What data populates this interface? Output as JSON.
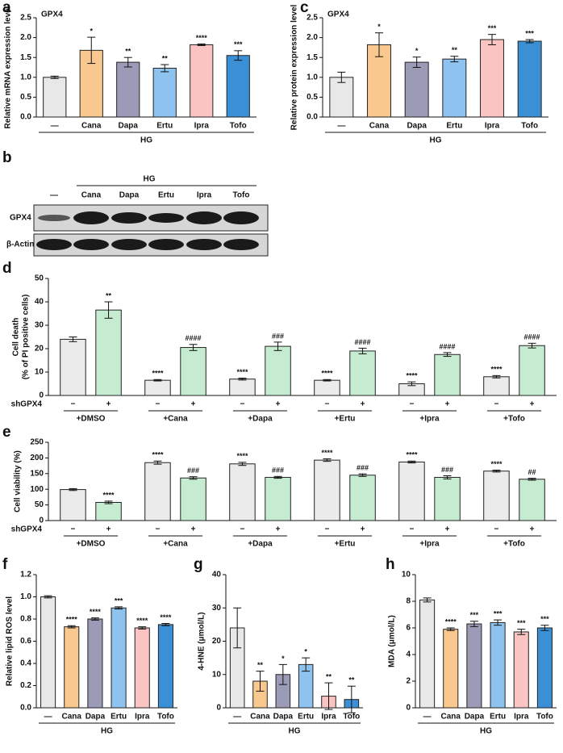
{
  "chart_data": [
    {
      "type": "bar",
      "panel_label": "a",
      "annotation": "GPX4",
      "ylabel": "Relative mRNA expression level",
      "categories": [
        "—",
        "Cana",
        "Dapa",
        "Ertu",
        "Ipra",
        "Tofo"
      ],
      "group_label": "HG",
      "values": [
        1.0,
        1.68,
        1.38,
        1.23,
        1.82,
        1.55
      ],
      "errors": [
        0.03,
        0.33,
        0.12,
        0.09,
        0.02,
        0.12
      ],
      "annotations": [
        null,
        "*",
        "**",
        "**",
        "****",
        "***"
      ],
      "colors": [
        "#e8e8e8",
        "#f8c88f",
        "#9b9bb8",
        "#8fc3ef",
        "#f9c4c2",
        "#3a8fd5"
      ],
      "ylim": [
        0,
        2.5
      ],
      "yticks": [
        {
          "value": 0,
          "label": "0.0"
        },
        0.5,
        {
          "value": 1,
          "label": "1.0"
        },
        1.5,
        {
          "value": 2,
          "label": "2.0"
        },
        2.5
      ]
    },
    {
      "type": "bar",
      "panel_label": "c",
      "annotation": "GPX4",
      "ylabel": "Relative protein expression level",
      "categories": [
        "—",
        "Cana",
        "Dapa",
        "Ertu",
        "Ipra",
        "Tofo"
      ],
      "group_label": "HG",
      "values": [
        1.0,
        1.82,
        1.38,
        1.46,
        1.95,
        1.91
      ],
      "errors": [
        0.13,
        0.3,
        0.13,
        0.07,
        0.13,
        0.04
      ],
      "annotations": [
        null,
        "*",
        "*",
        "**",
        "***",
        "***"
      ],
      "colors": [
        "#e8e8e8",
        "#f8c88f",
        "#9b9bb8",
        "#8fc3ef",
        "#f9c4c2",
        "#3a8fd5"
      ],
      "ylim": [
        0,
        2.5
      ],
      "yticks": [
        {
          "value": 0,
          "label": "0.0"
        },
        0.5,
        {
          "value": 1,
          "label": "1.0"
        },
        1.5,
        {
          "value": 2,
          "label": "2.0"
        },
        2.5
      ]
    },
    {
      "type": "bar",
      "panel_label": "d",
      "ylabel": [
        "Cell death",
        "(% of PI positive cells)"
      ],
      "legend_title": "shGPX4",
      "categories": [
        "+DMSO",
        "+Cana",
        "+Dapa",
        "+Ertu",
        "+Ipra",
        "+Tofo"
      ],
      "series": [
        {
          "name": "−",
          "color": "#ebebeb",
          "values": [
            24,
            6.5,
            7,
            6.5,
            5,
            8
          ],
          "errors": [
            1,
            0.3,
            0.4,
            0.3,
            0.8,
            0.5
          ],
          "annotations": [
            null,
            "****",
            "****",
            "****",
            "****",
            "****"
          ]
        },
        {
          "name": "+",
          "color": "#c5ecd0",
          "values": [
            36.5,
            20.5,
            21,
            19,
            17.5,
            21.3
          ],
          "errors": [
            3.5,
            1.3,
            1.8,
            1.2,
            0.8,
            1.0
          ],
          "annotations": [
            "**",
            "####",
            "###",
            "####",
            "####",
            "####"
          ]
        }
      ],
      "ylim": [
        0,
        50
      ],
      "yticks": [
        0,
        10,
        20,
        30,
        40,
        50
      ]
    },
    {
      "type": "bar",
      "panel_label": "e",
      "ylabel": "Cell viability (%)",
      "legend_title": "shGPX4",
      "categories": [
        "+DMSO",
        "+Cana",
        "+Dapa",
        "+Ertu",
        "+Ipra",
        "+Tofo"
      ],
      "series": [
        {
          "name": "−",
          "color": "#ebebeb",
          "values": [
            99,
            185,
            181,
            193,
            187,
            158
          ],
          "errors": [
            3,
            5,
            5,
            4,
            3,
            3
          ],
          "annotations": [
            null,
            "****",
            "****",
            "****",
            "****",
            "****"
          ]
        },
        {
          "name": "+",
          "color": "#c5ecd0",
          "values": [
            58,
            136,
            138,
            145,
            138,
            132
          ],
          "errors": [
            4,
            4,
            3,
            4,
            5,
            3
          ],
          "annotations": [
            "****",
            "###",
            "###",
            "###",
            "###",
            "##"
          ]
        }
      ],
      "ylim": [
        0,
        250
      ],
      "yticks": [
        0,
        50,
        100,
        150,
        200,
        250
      ]
    },
    {
      "type": "bar",
      "panel_label": "f",
      "ylabel": "Relative lipid ROS  level",
      "categories": [
        "—",
        "Cana",
        "Dapa",
        "Ertu",
        "Ipra",
        "Tofo"
      ],
      "group_label": "HG",
      "values": [
        1.0,
        0.73,
        0.8,
        0.9,
        0.72,
        0.75
      ],
      "errors": [
        0.01,
        0.01,
        0.01,
        0.01,
        0.01,
        0.01
      ],
      "annotations": [
        null,
        "****",
        "****",
        "***",
        "****",
        "****"
      ],
      "colors": [
        "#e8e8e8",
        "#f8c88f",
        "#9b9bb8",
        "#8fc3ef",
        "#f9c4c2",
        "#3a8fd5"
      ],
      "ylim": [
        0,
        1.2
      ],
      "yticks": [
        {
          "value": 0,
          "label": "0.0"
        },
        0.2,
        0.4,
        0.6,
        0.8,
        {
          "value": 1,
          "label": "1.0"
        },
        1.2
      ]
    },
    {
      "type": "bar",
      "panel_label": "g",
      "ylabel": "4-HNE (μmol/L)",
      "categories": [
        "—",
        "Cana",
        "Dapa",
        "Ertu",
        "Ipra",
        "Tofo"
      ],
      "group_label": "HG",
      "values": [
        24,
        8,
        10,
        13,
        3.5,
        2.5
      ],
      "errors": [
        6,
        3,
        3,
        2,
        4,
        4
      ],
      "annotations": [
        null,
        "**",
        "*",
        "*",
        "**",
        "**"
      ],
      "colors": [
        "#e8e8e8",
        "#f8c88f",
        "#9b9bb8",
        "#8fc3ef",
        "#f9c4c2",
        "#3a8fd5"
      ],
      "ylim": [
        0,
        40
      ],
      "yticks": [
        0,
        10,
        20,
        30,
        40
      ]
    },
    {
      "type": "bar",
      "panel_label": "h",
      "ylabel": "MDA (μmol/L)",
      "categories": [
        "—",
        "Cana",
        "Dapa",
        "Ertu",
        "Ipra",
        "Tofo"
      ],
      "group_label": "HG",
      "values": [
        8.1,
        5.9,
        6.3,
        6.4,
        5.7,
        6.0
      ],
      "errors": [
        0.15,
        0.1,
        0.2,
        0.2,
        0.2,
        0.2
      ],
      "annotations": [
        null,
        "****",
        "***",
        "***",
        "***",
        "***"
      ],
      "colors": [
        "#e8e8e8",
        "#f8c88f",
        "#9b9bb8",
        "#8fc3ef",
        "#f9c4c2",
        "#3a8fd5"
      ],
      "ylim": [
        0,
        10
      ],
      "yticks": [
        0,
        2,
        4,
        6,
        8,
        10
      ]
    }
  ],
  "blot": {
    "panel_label": "b",
    "group_label": "HG",
    "lanes": [
      "—",
      "Cana",
      "Dapa",
      "Ertu",
      "Ipra",
      "Tofo"
    ],
    "rows": [
      "GPX4",
      "β-Actin"
    ]
  }
}
